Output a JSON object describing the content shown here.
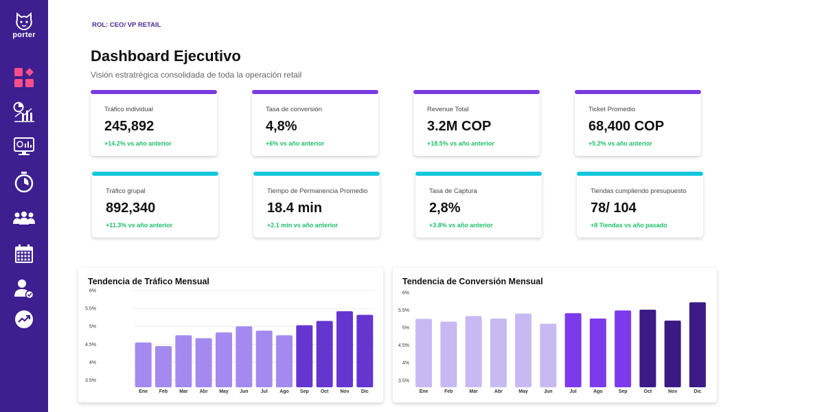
{
  "brand": {
    "name": "porter"
  },
  "sidebar": {
    "items": [
      {
        "name": "dashboard"
      },
      {
        "name": "analytics"
      },
      {
        "name": "monitor"
      },
      {
        "name": "timer"
      },
      {
        "name": "team"
      },
      {
        "name": "calendar"
      },
      {
        "name": "user-check"
      },
      {
        "name": "trend"
      }
    ]
  },
  "header": {
    "role": "ROL: CEO/ VP RETAIL",
    "title": "Dashboard Ejecutivo",
    "subtitle": "Visión estratrégica consolidada de toda la operación retail"
  },
  "colors": {
    "sidebar": "#3d1f8f",
    "purple_bar": "#7a3ce0",
    "cyan_bar": "#12c8dc",
    "positive": "#1fbf6a"
  },
  "kpis": [
    {
      "label": "Tráfico individual",
      "value": "245,892",
      "delta": "+14.2% vs año anterior"
    },
    {
      "label": "Tasa de conversión",
      "value": "4,8%",
      "delta": "+6% vs año anterior"
    },
    {
      "label": "Revenue Total",
      "value": "3.2M COP",
      "delta": "+18.5% vs año anterior"
    },
    {
      "label": "Ticket Promedio",
      "value": "68,400 COP",
      "delta": "+5.2% vs año anterior"
    },
    {
      "label": "Tráfico grupal",
      "value": "892,340",
      "delta": "+11.3% vs año anterior"
    },
    {
      "label": "Tiempo de Permanencia Promedio",
      "value": "18.4 min",
      "delta": "+2.1 min vs año anterior"
    },
    {
      "label": "Tasa de Captura",
      "value": "2,8%",
      "delta": "+3.8% vs año anterior"
    },
    {
      "label": "Tiendas cumpliendo presupuesto",
      "value": "78/ 104",
      "delta": "+8 Tiendas  vs año pasado"
    }
  ],
  "chart_data": [
    {
      "type": "bar",
      "title": "Tendencia de Tráfico Mensual",
      "categories": [
        "Ene",
        "Feb",
        "Mar",
        "Abr",
        "May",
        "Jun",
        "Jul",
        "Ago",
        "Sep",
        "Oct",
        "Nov",
        "Dic"
      ],
      "values": [
        4.55,
        4.45,
        4.75,
        4.67,
        4.83,
        5.0,
        4.88,
        4.75,
        5.03,
        5.15,
        5.42,
        5.32
      ],
      "yticks": [
        "6%",
        "5.5%",
        "5%",
        "4.5%",
        "4%",
        "3.5%"
      ],
      "ylim": [
        3.3,
        6.0
      ],
      "bar_colors": [
        "#a48af0",
        "#a48af0",
        "#a48af0",
        "#a48af0",
        "#a48af0",
        "#a48af0",
        "#a48af0",
        "#a48af0",
        "#6535d0",
        "#6535d0",
        "#6535d0",
        "#6535d0"
      ],
      "xlabel": "",
      "ylabel": "",
      "grid": true
    },
    {
      "type": "bar",
      "title": "Tendencia de Conversión Mensual",
      "categories": [
        "Ene",
        "Feb",
        "Mar",
        "Abr",
        "May",
        "Jun",
        "Jul",
        "Ago",
        "Sep",
        "Oct",
        "Nov",
        "Dic"
      ],
      "values": [
        5.25,
        5.17,
        5.33,
        5.26,
        5.4,
        5.11,
        5.41,
        5.26,
        5.49,
        5.51,
        5.2,
        5.72
      ],
      "yticks": [
        "6%",
        "5.5%",
        "5%",
        "4.5%",
        "4%",
        "3.5%"
      ],
      "ylim": [
        3.3,
        6.0
      ],
      "bar_colors": [
        "#c8b9f3",
        "#c8b9f3",
        "#c8b9f3",
        "#c8b9f3",
        "#c8b9f3",
        "#c8b9f3",
        "#7c3aed",
        "#7c3aed",
        "#7c3aed",
        "#3b1a86",
        "#3b1a86",
        "#3b1a86"
      ],
      "xlabel": "",
      "ylabel": "",
      "grid": false
    }
  ]
}
